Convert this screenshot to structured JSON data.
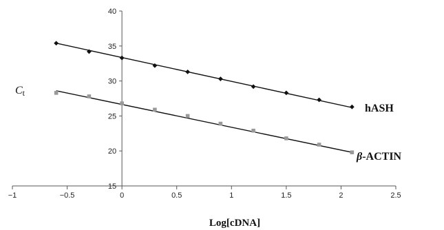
{
  "chart_data": {
    "type": "scatter",
    "title": "",
    "xlabel": "Log[cDNA]",
    "ylabel": {
      "main": "C",
      "sub": "t"
    },
    "xlim": [
      -1,
      2.5
    ],
    "ylim": [
      15,
      40
    ],
    "xticks": [
      -1,
      -0.5,
      0,
      0.5,
      1,
      1.5,
      2,
      2.5
    ],
    "xtick_labels": [
      "−1",
      "−0.5",
      "0",
      "0.5",
      "1",
      "1.5",
      "2",
      "2.5"
    ],
    "yticks": [
      15,
      20,
      25,
      30,
      35,
      40
    ],
    "ytick_labels": [
      "15",
      "20",
      "25",
      "30",
      "35",
      "40"
    ],
    "grid": false,
    "legend": "none",
    "series": [
      {
        "name": "hASH",
        "label_parts": {
          "greek": "",
          "text": "hASH"
        },
        "color": "#111111",
        "marker": "diamond",
        "x": [
          -0.6,
          -0.3,
          0,
          0.3,
          0.6,
          0.9,
          1.2,
          1.5,
          1.8,
          2.1
        ],
        "y": [
          35.4,
          34.2,
          33.3,
          32.2,
          31.3,
          30.3,
          29.2,
          28.3,
          27.3,
          26.3
        ],
        "trend": {
          "x": [
            -0.6,
            2.1
          ],
          "y": [
            35.4,
            26.2
          ]
        }
      },
      {
        "name": "β-ACTIN",
        "label_parts": {
          "greek": "β",
          "text": "-ACTIN"
        },
        "color": "#999999",
        "marker": "square",
        "x": [
          -0.6,
          -0.3,
          0,
          0.3,
          0.6,
          0.9,
          1.2,
          1.5,
          1.8,
          2.1
        ],
        "y": [
          28.3,
          27.8,
          26.8,
          25.9,
          25.0,
          23.9,
          22.9,
          21.8,
          20.9,
          19.8
        ],
        "trend": {
          "x": [
            -0.6,
            2.1
          ],
          "y": [
            28.6,
            19.8
          ]
        }
      }
    ]
  }
}
